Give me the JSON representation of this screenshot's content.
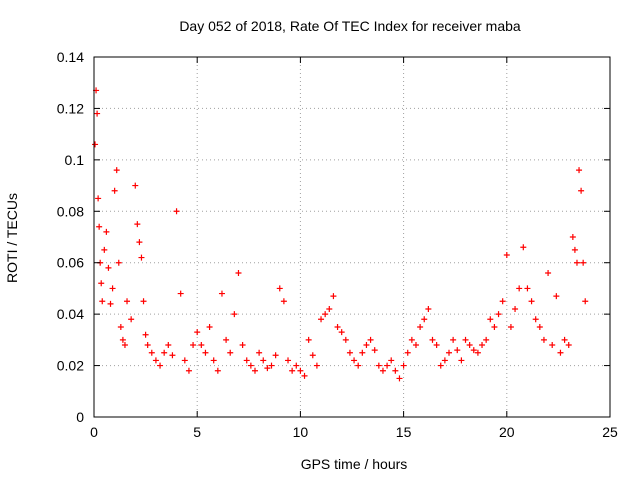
{
  "chart_data": {
    "type": "scatter",
    "title": "Day 052 of 2018, Rate Of TEC Index for receiver maba",
    "xlabel": "GPS time / hours",
    "ylabel": "ROTI / TECUs",
    "xlim": [
      0,
      25
    ],
    "ylim": [
      0,
      0.14
    ],
    "xticks": [
      "0",
      "5",
      "10",
      "15",
      "20",
      "25"
    ],
    "yticks": [
      "0",
      "0.02",
      "0.04",
      "0.06",
      "0.08",
      "0.1",
      "0.12",
      "0.14"
    ],
    "grid": true,
    "marker": "+",
    "series": [
      {
        "name": "ROTI",
        "color": "#ff0000",
        "x": [
          0.05,
          0.1,
          0.15,
          0.2,
          0.25,
          0.3,
          0.35,
          0.4,
          0.5,
          0.6,
          0.7,
          0.8,
          0.9,
          1.0,
          1.1,
          1.2,
          1.3,
          1.4,
          1.5,
          1.6,
          1.8,
          2.0,
          2.1,
          2.2,
          2.3,
          2.4,
          2.5,
          2.6,
          2.8,
          3.0,
          3.2,
          3.4,
          3.6,
          3.8,
          4.0,
          4.2,
          4.4,
          4.6,
          4.8,
          5.0,
          5.2,
          5.4,
          5.6,
          5.8,
          6.0,
          6.2,
          6.4,
          6.6,
          6.8,
          7.0,
          7.2,
          7.4,
          7.6,
          7.8,
          8.0,
          8.2,
          8.4,
          8.6,
          8.8,
          9.0,
          9.2,
          9.4,
          9.6,
          9.8,
          10.0,
          10.2,
          10.4,
          10.6,
          10.8,
          11.0,
          11.2,
          11.4,
          11.6,
          11.8,
          12.0,
          12.2,
          12.4,
          12.6,
          12.8,
          13.0,
          13.2,
          13.4,
          13.6,
          13.8,
          14.0,
          14.2,
          14.4,
          14.6,
          14.8,
          15.0,
          15.2,
          15.4,
          15.6,
          15.8,
          16.0,
          16.2,
          16.4,
          16.6,
          16.8,
          17.0,
          17.2,
          17.4,
          17.6,
          17.8,
          18.0,
          18.2,
          18.4,
          18.6,
          18.8,
          19.0,
          19.2,
          19.4,
          19.6,
          19.8,
          20.0,
          20.2,
          20.4,
          20.6,
          20.8,
          21.0,
          21.2,
          21.4,
          21.6,
          21.8,
          22.0,
          22.2,
          22.4,
          22.6,
          22.8,
          23.0,
          23.2,
          23.3,
          23.4,
          23.5,
          23.6,
          23.7,
          23.8
        ],
        "y": [
          0.106,
          0.127,
          0.118,
          0.085,
          0.074,
          0.06,
          0.052,
          0.045,
          0.065,
          0.072,
          0.058,
          0.044,
          0.05,
          0.088,
          0.096,
          0.06,
          0.035,
          0.03,
          0.028,
          0.045,
          0.038,
          0.09,
          0.075,
          0.068,
          0.062,
          0.045,
          0.032,
          0.028,
          0.025,
          0.022,
          0.02,
          0.025,
          0.028,
          0.024,
          0.08,
          0.048,
          0.022,
          0.018,
          0.028,
          0.033,
          0.028,
          0.025,
          0.035,
          0.022,
          0.018,
          0.048,
          0.03,
          0.025,
          0.04,
          0.056,
          0.028,
          0.022,
          0.02,
          0.018,
          0.025,
          0.022,
          0.019,
          0.02,
          0.024,
          0.05,
          0.045,
          0.022,
          0.018,
          0.02,
          0.018,
          0.016,
          0.03,
          0.024,
          0.02,
          0.038,
          0.04,
          0.042,
          0.047,
          0.035,
          0.033,
          0.03,
          0.025,
          0.022,
          0.02,
          0.025,
          0.028,
          0.03,
          0.026,
          0.02,
          0.018,
          0.02,
          0.022,
          0.018,
          0.015,
          0.02,
          0.025,
          0.03,
          0.028,
          0.035,
          0.038,
          0.042,
          0.03,
          0.028,
          0.02,
          0.022,
          0.025,
          0.03,
          0.026,
          0.022,
          0.03,
          0.028,
          0.026,
          0.025,
          0.028,
          0.03,
          0.038,
          0.035,
          0.04,
          0.045,
          0.063,
          0.035,
          0.042,
          0.05,
          0.066,
          0.05,
          0.045,
          0.038,
          0.035,
          0.03,
          0.056,
          0.028,
          0.047,
          0.025,
          0.03,
          0.028,
          0.07,
          0.065,
          0.06,
          0.096,
          0.088,
          0.06,
          0.045
        ]
      }
    ]
  }
}
